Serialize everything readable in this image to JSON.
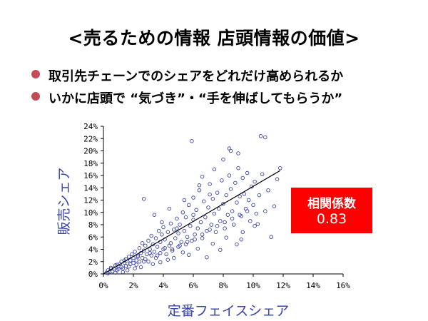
{
  "slide": {
    "title": "<売るための情報 店頭情報の価値>",
    "bullets": [
      "取引先チェーンでのシェアをどれだけ高められるか",
      "いかに店頭で “気づき”・“手を伸ばしてもらうか”"
    ]
  },
  "colors": {
    "bullet": "#c44b55",
    "points": "#3c46a8",
    "axis_text": "#3c46a8",
    "badge_bg": "#ff0000",
    "badge_text": "#ffffff",
    "trend": "#000000"
  },
  "annotation": {
    "label": "相関係数",
    "value": "0.83"
  },
  "chart_data": {
    "type": "scatter",
    "xlabel": "定番フェイスシェア",
    "ylabel": "販売シェア",
    "xlim": [
      0,
      16
    ],
    "ylim": [
      0,
      24
    ],
    "x_ticks": [
      "0%",
      "2%",
      "4%",
      "6%",
      "8%",
      "10%",
      "12%",
      "14%",
      "16%"
    ],
    "y_ticks": [
      "0%",
      "2%",
      "4%",
      "6%",
      "8%",
      "10%",
      "12%",
      "14%",
      "16%",
      "18%",
      "20%",
      "22%",
      "24%"
    ],
    "grid": false,
    "legend": "none",
    "marker": "hollow-circle",
    "trendline": {
      "x": [
        0,
        11.8
      ],
      "y": [
        0,
        16.8
      ]
    },
    "points": [
      [
        0.2,
        0.2
      ],
      [
        0.3,
        0.6
      ],
      [
        0.4,
        0.3
      ],
      [
        0.5,
        1.0
      ],
      [
        0.6,
        0.4
      ],
      [
        0.7,
        0.9
      ],
      [
        0.8,
        1.4
      ],
      [
        0.9,
        0.6
      ],
      [
        1.0,
        1.2
      ],
      [
        1.0,
        0.8
      ],
      [
        1.1,
        1.6
      ],
      [
        1.2,
        1.1
      ],
      [
        1.2,
        2.0
      ],
      [
        1.3,
        0.9
      ],
      [
        1.4,
        1.8
      ],
      [
        1.5,
        1.3
      ],
      [
        1.5,
        2.4
      ],
      [
        1.6,
        1.7
      ],
      [
        1.7,
        2.8
      ],
      [
        1.7,
        1.2
      ],
      [
        1.8,
        2.2
      ],
      [
        1.9,
        3.2
      ],
      [
        2.0,
        1.8
      ],
      [
        2.0,
        2.6
      ],
      [
        2.1,
        3.6
      ],
      [
        2.2,
        2.2
      ],
      [
        2.2,
        1.5
      ],
      [
        2.3,
        3.0
      ],
      [
        2.4,
        4.2
      ],
      [
        2.4,
        2.0
      ],
      [
        2.5,
        3.4
      ],
      [
        2.6,
        2.6
      ],
      [
        2.6,
        5.0
      ],
      [
        2.7,
        3.8
      ],
      [
        2.8,
        2.4
      ],
      [
        2.8,
        4.6
      ],
      [
        2.9,
        3.2
      ],
      [
        3.0,
        5.4
      ],
      [
        3.0,
        2.0
      ],
      [
        3.1,
        4.0
      ],
      [
        3.2,
        6.2
      ],
      [
        3.2,
        3.0
      ],
      [
        3.3,
        4.8
      ],
      [
        3.4,
        3.6
      ],
      [
        3.5,
        5.8
      ],
      [
        3.5,
        2.6
      ],
      [
        3.6,
        4.4
      ],
      [
        3.7,
        7.0
      ],
      [
        3.8,
        3.4
      ],
      [
        3.8,
        5.2
      ],
      [
        3.9,
        6.4
      ],
      [
        4.0,
        4.0
      ],
      [
        4.0,
        7.6
      ],
      [
        4.1,
        5.6
      ],
      [
        4.2,
        3.2
      ],
      [
        4.3,
        6.8
      ],
      [
        4.4,
        4.6
      ],
      [
        4.5,
        8.2
      ],
      [
        4.5,
        5.0
      ],
      [
        4.6,
        3.8
      ],
      [
        4.7,
        7.2
      ],
      [
        4.8,
        5.8
      ],
      [
        4.9,
        9.0
      ],
      [
        5.0,
        4.4
      ],
      [
        5.0,
        6.6
      ],
      [
        5.1,
        8.0
      ],
      [
        5.2,
        5.2
      ],
      [
        5.3,
        10.0
      ],
      [
        5.4,
        7.0
      ],
      [
        5.5,
        4.8
      ],
      [
        5.5,
        9.2
      ],
      [
        5.6,
        6.0
      ],
      [
        5.7,
        11.2
      ],
      [
        5.8,
        7.8
      ],
      [
        5.9,
        5.4
      ],
      [
        6.0,
        8.8
      ],
      [
        6.0,
        12.4
      ],
      [
        6.1,
        6.4
      ],
      [
        6.2,
        10.4
      ],
      [
        6.3,
        7.4
      ],
      [
        6.4,
        13.6
      ],
      [
        6.5,
        8.4
      ],
      [
        6.6,
        5.8
      ],
      [
        6.7,
        11.8
      ],
      [
        6.8,
        9.2
      ],
      [
        6.9,
        7.0
      ],
      [
        7.0,
        10.8
      ],
      [
        7.1,
        14.6
      ],
      [
        7.2,
        8.0
      ],
      [
        7.3,
        12.2
      ],
      [
        7.4,
        9.8
      ],
      [
        7.5,
        6.8
      ],
      [
        7.6,
        13.2
      ],
      [
        7.7,
        10.6
      ],
      [
        7.8,
        8.6
      ],
      [
        7.9,
        15.2
      ],
      [
        8.0,
        11.4
      ],
      [
        8.1,
        7.4
      ],
      [
        8.2,
        12.8
      ],
      [
        8.3,
        9.6
      ],
      [
        8.4,
        16.0
      ],
      [
        8.5,
        13.8
      ],
      [
        8.6,
        10.2
      ],
      [
        8.7,
        8.0
      ],
      [
        8.8,
        14.8
      ],
      [
        8.9,
        11.6
      ],
      [
        9.0,
        17.2
      ],
      [
        9.1,
        12.6
      ],
      [
        9.2,
        9.4
      ],
      [
        9.3,
        15.6
      ],
      [
        9.4,
        13.0
      ],
      [
        9.5,
        10.6
      ],
      [
        9.6,
        16.4
      ],
      [
        9.7,
        12.0
      ],
      [
        9.8,
        8.6
      ],
      [
        9.9,
        14.2
      ],
      [
        10.0,
        11.2
      ],
      [
        10.1,
        15.0
      ],
      [
        10.2,
        9.8
      ],
      [
        10.4,
        12.8
      ],
      [
        10.6,
        16.2
      ],
      [
        10.8,
        10.2
      ],
      [
        11.0,
        13.6
      ],
      [
        11.2,
        6.0
      ],
      [
        11.4,
        11.0
      ],
      [
        11.6,
        15.4
      ],
      [
        11.8,
        17.2
      ],
      [
        0.5,
        0.8
      ],
      [
        0.9,
        1.5
      ],
      [
        1.4,
        2.2
      ],
      [
        1.8,
        1.6
      ],
      [
        2.3,
        2.8
      ],
      [
        2.7,
        2.0
      ],
      [
        3.1,
        3.4
      ],
      [
        3.6,
        3.0
      ],
      [
        4.1,
        4.2
      ],
      [
        4.6,
        4.0
      ],
      [
        5.1,
        4.6
      ],
      [
        5.6,
        5.2
      ],
      [
        6.1,
        5.6
      ],
      [
        6.6,
        6.4
      ],
      [
        7.1,
        7.2
      ],
      [
        7.6,
        7.8
      ],
      [
        8.1,
        8.4
      ],
      [
        8.6,
        9.0
      ],
      [
        9.1,
        9.6
      ],
      [
        9.6,
        10.2
      ],
      [
        3.4,
        9.6
      ],
      [
        5.9,
        21.6
      ],
      [
        6.4,
        14.4
      ],
      [
        8.4,
        20.4
      ],
      [
        8.5,
        20.0
      ],
      [
        10.5,
        22.4
      ],
      [
        10.8,
        22.2
      ],
      [
        2.7,
        12.2
      ],
      [
        7.8,
        3.9
      ],
      [
        8.9,
        4.8
      ],
      [
        10.1,
        7.8
      ],
      [
        4.7,
        2.6
      ],
      [
        6.9,
        2.7
      ],
      [
        5.3,
        3.5
      ],
      [
        9.2,
        5.6
      ],
      [
        3.8,
        1.9
      ],
      [
        2.1,
        0.9
      ],
      [
        1.3,
        0.3
      ],
      [
        0.3,
        0.1
      ],
      [
        0.8,
        0.2
      ],
      [
        1.6,
        0.6
      ],
      [
        2.5,
        1.1
      ],
      [
        3.3,
        1.6
      ],
      [
        4.3,
        2.3
      ],
      [
        5.7,
        3.1
      ],
      [
        6.3,
        4.1
      ],
      [
        7.3,
        4.9
      ],
      [
        8.2,
        5.9
      ],
      [
        9.3,
        6.8
      ],
      [
        10.3,
        8.1
      ],
      [
        3.9,
        8.4
      ],
      [
        4.4,
        10.6
      ],
      [
        5.4,
        12.0
      ],
      [
        6.6,
        15.8
      ],
      [
        7.4,
        17.0
      ],
      [
        8.0,
        18.6
      ],
      [
        9.0,
        19.6
      ],
      [
        7.1,
        12.9
      ],
      [
        6.0,
        9.6
      ],
      [
        4.9,
        7.4
      ]
    ]
  }
}
